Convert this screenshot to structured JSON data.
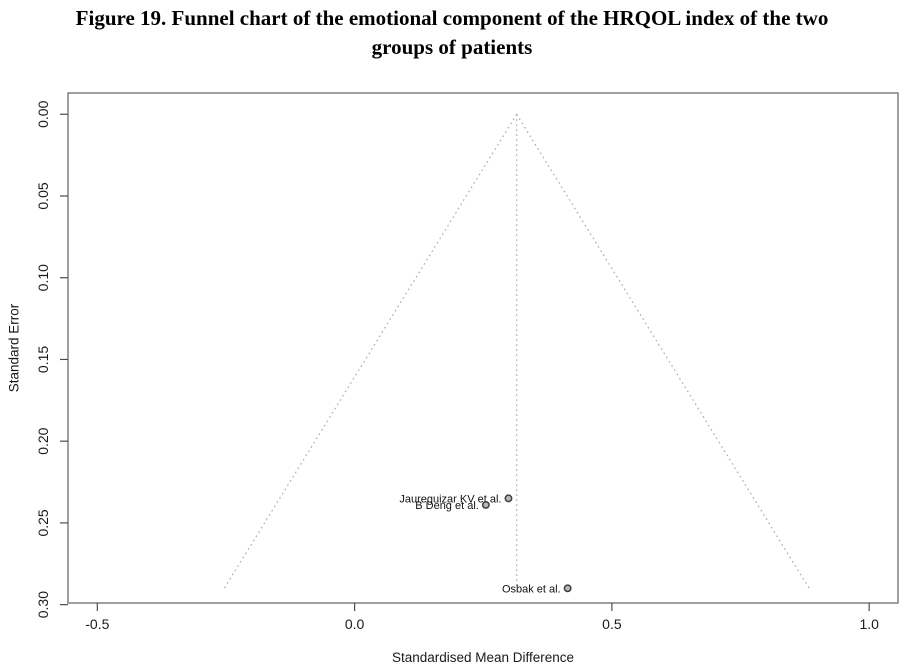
{
  "figure": {
    "title_lines": [
      "Figure 19. Funnel chart of the emotional component of the HRQOL index of the two",
      "groups of patients"
    ]
  },
  "chart_data": {
    "type": "scatter",
    "subtype": "funnel-plot",
    "title": "Figure 19. Funnel chart of the emotional component of the HRQOL index of the two groups of patients",
    "xlabel": "Standardised Mean Difference",
    "ylabel": "Standard Error",
    "xlim": [
      -0.557,
      1.056
    ],
    "ylim": [
      -0.013,
      0.299
    ],
    "y_axis_inverted_note": "standard error increases downward",
    "grid": false,
    "legend": null,
    "x_ticks": {
      "values": [
        -0.5,
        0.0,
        0.5,
        1.0
      ],
      "labels": [
        "-0.5",
        "0.0",
        "0.5",
        "1.0"
      ]
    },
    "y_ticks": {
      "values": [
        0.0,
        0.05,
        0.1,
        0.15,
        0.2,
        0.25,
        0.3
      ],
      "labels": [
        "0.00",
        "0.05",
        "0.10",
        "0.15",
        "0.20",
        "0.25",
        "0.30"
      ]
    },
    "funnel": {
      "center_smd": 0.315,
      "se_apex": 0.0,
      "se_bottom": 0.29,
      "z_value": 1.96
    },
    "points": [
      {
        "label": "Jaureguizar KV et al.",
        "smd": 0.299,
        "se": 0.235
      },
      {
        "label": "B Deng et al.",
        "smd": 0.255,
        "se": 0.239
      },
      {
        "label": "Osbak et al.",
        "smd": 0.414,
        "se": 0.29
      }
    ],
    "colors": {
      "box_stroke": "#6b6b6b",
      "tick_stroke": "#4d4d4d",
      "dotted_line": "#aaaaaa",
      "point_fill": "#b8b8b8",
      "point_stroke": "#3d3d3d",
      "text": "#1a1a1a"
    }
  }
}
